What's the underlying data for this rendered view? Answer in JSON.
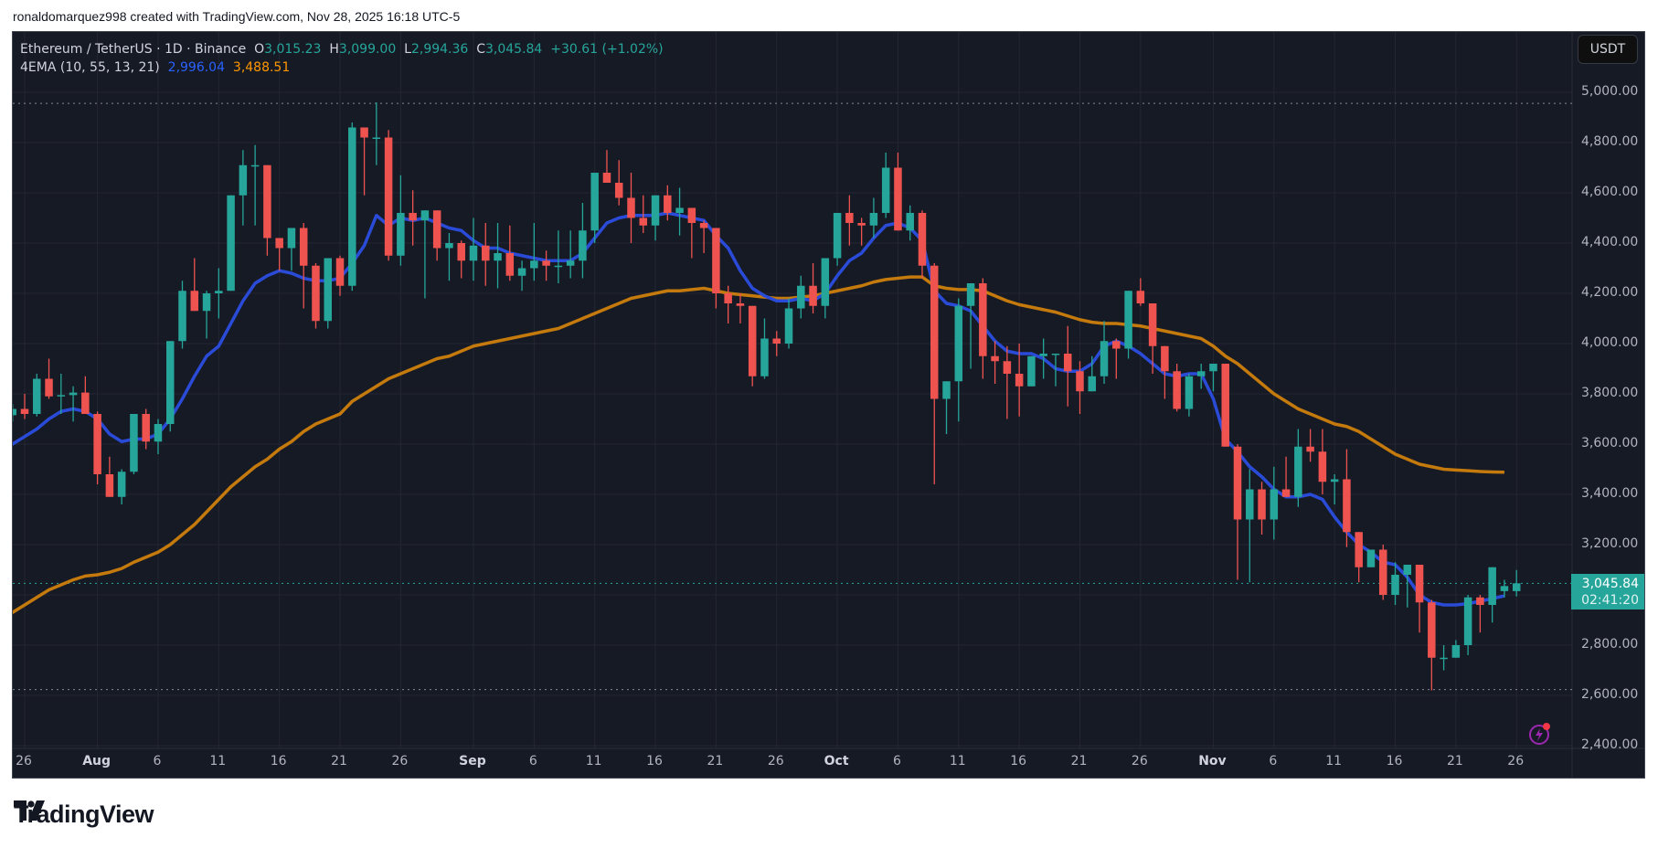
{
  "attribution": "ronaldomarquez998 created with TradingView.com, Nov 28, 2025 16:18 UTC-5",
  "legend": {
    "symbol": "Ethereum / TetherUS · 1D · Binance",
    "o_label": "O",
    "o_value": "3,015.23",
    "h_label": "H",
    "h_value": "3,099.00",
    "l_label": "L",
    "l_value": "2,994.36",
    "c_label": "C",
    "c_value": "3,045.84",
    "change": "+30.61 (+1.02%)",
    "indicator": "4EMA (10, 55, 13, 21)",
    "ema_fast_value": "2,996.04",
    "ema_slow_value": "3,488.51"
  },
  "currency_button": "USDT",
  "price_tag": {
    "price": "3,045.84",
    "countdown": "02:41:20"
  },
  "brand": "TradingView",
  "colors": {
    "background": "#161a25",
    "grid": "#242733",
    "up": "#26a69a",
    "down": "#ef5350",
    "ema_fast": "#2a4bd7",
    "ema_slow": "#c47a0c",
    "axis_text": "#b2b5be",
    "flash": "#9c27b0"
  },
  "chart_data": {
    "type": "candlestick",
    "title": "Ethereum / TetherUS · 1D · Binance",
    "xlabel": "",
    "ylabel": "USDT",
    "ylim": [
      2400,
      5000
    ],
    "grid": true,
    "y_ticks": [
      "5,000.00",
      "4,800.00",
      "4,600.00",
      "4,400.00",
      "4,200.00",
      "4,000.00",
      "3,800.00",
      "3,600.00",
      "3,400.00",
      "3,200.00",
      "2,800.00",
      "2,600.00",
      "2,400.00"
    ],
    "x_ticks": [
      {
        "label": "26",
        "day": 2,
        "month": false
      },
      {
        "label": "Aug",
        "day": 8,
        "month": true
      },
      {
        "label": "6",
        "day": 13,
        "month": false
      },
      {
        "label": "11",
        "day": 18,
        "month": false
      },
      {
        "label": "16",
        "day": 23,
        "month": false
      },
      {
        "label": "21",
        "day": 28,
        "month": false
      },
      {
        "label": "26",
        "day": 33,
        "month": false
      },
      {
        "label": "Sep",
        "day": 39,
        "month": true
      },
      {
        "label": "6",
        "day": 44,
        "month": false
      },
      {
        "label": "11",
        "day": 49,
        "month": false
      },
      {
        "label": "16",
        "day": 54,
        "month": false
      },
      {
        "label": "21",
        "day": 59,
        "month": false
      },
      {
        "label": "26",
        "day": 64,
        "month": false
      },
      {
        "label": "Oct",
        "day": 69,
        "month": true
      },
      {
        "label": "6",
        "day": 74,
        "month": false
      },
      {
        "label": "11",
        "day": 79,
        "month": false
      },
      {
        "label": "16",
        "day": 84,
        "month": false
      },
      {
        "label": "21",
        "day": 89,
        "month": false
      },
      {
        "label": "26",
        "day": 94,
        "month": false
      },
      {
        "label": "Nov",
        "day": 100,
        "month": true
      },
      {
        "label": "6",
        "day": 105,
        "month": false
      },
      {
        "label": "11",
        "day": 110,
        "month": false
      },
      {
        "label": "16",
        "day": 115,
        "month": false
      },
      {
        "label": "21",
        "day": 120,
        "month": false
      },
      {
        "label": "26",
        "day": 125,
        "month": false
      }
    ],
    "start_date": "2025-07-24",
    "series": [
      {
        "name": "ETHUSDT",
        "type": "ohlc",
        "values": [
          [
            3720,
            3745,
            3700,
            3715
          ],
          [
            3715,
            3760,
            3690,
            3740
          ],
          [
            3740,
            3800,
            3700,
            3720
          ],
          [
            3720,
            3880,
            3710,
            3860
          ],
          [
            3860,
            3940,
            3780,
            3790
          ],
          [
            3790,
            3880,
            3720,
            3795
          ],
          [
            3795,
            3830,
            3690,
            3805
          ],
          [
            3805,
            3870,
            3720,
            3720
          ],
          [
            3720,
            3730,
            3440,
            3480
          ],
          [
            3480,
            3550,
            3420,
            3390
          ],
          [
            3390,
            3500,
            3360,
            3490
          ],
          [
            3490,
            3720,
            3480,
            3720
          ],
          [
            3720,
            3740,
            3580,
            3610
          ],
          [
            3610,
            3700,
            3560,
            3680
          ],
          [
            3680,
            3960,
            3650,
            4010
          ],
          [
            4010,
            4250,
            3980,
            4210
          ],
          [
            4210,
            4340,
            4200,
            4130
          ],
          [
            4130,
            4210,
            4020,
            4200
          ],
          [
            4200,
            4300,
            4100,
            4210
          ],
          [
            4210,
            4560,
            4210,
            4590
          ],
          [
            4590,
            4770,
            4470,
            4710
          ],
          [
            4710,
            4790,
            4470,
            4710
          ],
          [
            4710,
            4580,
            4350,
            4420
          ],
          [
            4420,
            4420,
            4290,
            4380
          ],
          [
            4380,
            4440,
            4290,
            4460
          ],
          [
            4460,
            4480,
            4140,
            4310
          ],
          [
            4310,
            4320,
            4060,
            4090
          ],
          [
            4090,
            4320,
            4060,
            4340
          ],
          [
            4340,
            4350,
            4190,
            4230
          ],
          [
            4230,
            4880,
            4210,
            4860
          ],
          [
            4860,
            4820,
            4590,
            4820
          ],
          [
            4820,
            4960,
            4710,
            4820
          ],
          [
            4820,
            4850,
            4330,
            4350
          ],
          [
            4350,
            4670,
            4310,
            4520
          ],
          [
            4520,
            4610,
            4390,
            4490
          ],
          [
            4490,
            4510,
            4180,
            4530
          ],
          [
            4530,
            4510,
            4330,
            4380
          ],
          [
            4380,
            4440,
            4250,
            4400
          ],
          [
            4400,
            4410,
            4260,
            4330
          ],
          [
            4330,
            4500,
            4250,
            4390
          ],
          [
            4390,
            4480,
            4230,
            4330
          ],
          [
            4330,
            4480,
            4220,
            4360
          ],
          [
            4360,
            4470,
            4250,
            4270
          ],
          [
            4270,
            4330,
            4210,
            4300
          ],
          [
            4300,
            4480,
            4250,
            4330
          ],
          [
            4330,
            4370,
            4250,
            4310
          ],
          [
            4310,
            4450,
            4240,
            4310
          ],
          [
            4310,
            4450,
            4260,
            4330
          ],
          [
            4330,
            4560,
            4260,
            4450
          ],
          [
            4450,
            4630,
            4400,
            4680
          ],
          [
            4680,
            4770,
            4660,
            4640
          ],
          [
            4640,
            4730,
            4550,
            4580
          ],
          [
            4580,
            4680,
            4400,
            4500
          ],
          [
            4500,
            4590,
            4440,
            4470
          ],
          [
            4470,
            4590,
            4410,
            4590
          ],
          [
            4590,
            4630,
            4490,
            4520
          ],
          [
            4520,
            4620,
            4430,
            4540
          ],
          [
            4540,
            4540,
            4340,
            4480
          ],
          [
            4480,
            4490,
            4360,
            4460
          ],
          [
            4460,
            4440,
            4140,
            4200
          ],
          [
            4200,
            4230,
            4080,
            4160
          ],
          [
            4160,
            4200,
            4080,
            4150
          ],
          [
            4150,
            4150,
            3830,
            3870
          ],
          [
            3870,
            4100,
            3860,
            4020
          ],
          [
            4020,
            4050,
            3950,
            4000
          ],
          [
            4000,
            4180,
            3980,
            4140
          ],
          [
            4140,
            4270,
            4100,
            4230
          ],
          [
            4230,
            4320,
            4120,
            4150
          ],
          [
            4150,
            4300,
            4100,
            4340
          ],
          [
            4340,
            4470,
            4310,
            4520
          ],
          [
            4520,
            4590,
            4390,
            4480
          ],
          [
            4480,
            4500,
            4390,
            4470
          ],
          [
            4470,
            4580,
            4420,
            4520
          ],
          [
            4520,
            4760,
            4500,
            4700
          ],
          [
            4700,
            4760,
            4450,
            4450
          ],
          [
            4450,
            4550,
            4410,
            4520
          ],
          [
            4520,
            4530,
            4260,
            4310
          ],
          [
            4310,
            4320,
            3440,
            3780
          ],
          [
            3780,
            3820,
            3640,
            3850
          ],
          [
            3850,
            4180,
            3690,
            4150
          ],
          [
            4150,
            4240,
            3900,
            4240
          ],
          [
            4240,
            4260,
            3860,
            3950
          ],
          [
            3950,
            4010,
            3840,
            3930
          ],
          [
            3930,
            3990,
            3700,
            3880
          ],
          [
            3880,
            4000,
            3710,
            3830
          ],
          [
            3830,
            3950,
            3830,
            3950
          ],
          [
            3950,
            4020,
            3860,
            3960
          ],
          [
            3960,
            3950,
            3830,
            3960
          ],
          [
            3960,
            4070,
            3750,
            3890
          ],
          [
            3890,
            3930,
            3720,
            3810
          ],
          [
            3810,
            3950,
            3820,
            3870
          ],
          [
            3870,
            4090,
            3840,
            4010
          ],
          [
            4010,
            4020,
            3860,
            3980
          ],
          [
            3980,
            4130,
            3940,
            4210
          ],
          [
            4210,
            4260,
            4150,
            4160
          ],
          [
            4160,
            4120,
            3880,
            3990
          ],
          [
            3990,
            3960,
            3780,
            3890
          ],
          [
            3890,
            3920,
            3730,
            3740
          ],
          [
            3740,
            3880,
            3710,
            3870
          ],
          [
            3870,
            3920,
            3820,
            3890
          ],
          [
            3890,
            3910,
            3810,
            3920
          ],
          [
            3920,
            3910,
            3660,
            3590
          ],
          [
            3590,
            3600,
            3060,
            3300
          ],
          [
            3300,
            3500,
            3050,
            3420
          ],
          [
            3420,
            3450,
            3240,
            3300
          ],
          [
            3300,
            3510,
            3220,
            3420
          ],
          [
            3420,
            3550,
            3390,
            3390
          ],
          [
            3390,
            3660,
            3350,
            3590
          ],
          [
            3590,
            3660,
            3530,
            3570
          ],
          [
            3570,
            3660,
            3400,
            3450
          ],
          [
            3450,
            3480,
            3360,
            3460
          ],
          [
            3460,
            3580,
            3190,
            3250
          ],
          [
            3250,
            3240,
            3050,
            3110
          ],
          [
            3110,
            3180,
            3150,
            3180
          ],
          [
            3180,
            3200,
            2980,
            3000
          ],
          [
            3000,
            3130,
            2960,
            3080
          ],
          [
            3080,
            3120,
            2950,
            3120
          ],
          [
            3120,
            3120,
            2850,
            2970
          ],
          [
            2970,
            2980,
            2620,
            2750
          ],
          [
            2750,
            2800,
            2700,
            2750
          ],
          [
            2750,
            2820,
            2760,
            2800
          ],
          [
            2800,
            3000,
            2760,
            2990
          ],
          [
            2990,
            3000,
            2850,
            2960
          ],
          [
            2960,
            3070,
            2890,
            3110
          ],
          [
            3015,
            3060,
            2990,
            3035
          ],
          [
            3015,
            3099,
            2994,
            3046
          ]
        ]
      }
    ],
    "ema_fast": {
      "name": "EMA fast",
      "last": 2996.04,
      "values": [
        3560,
        3600,
        3630,
        3660,
        3700,
        3730,
        3740,
        3730,
        3700,
        3640,
        3610,
        3620,
        3620,
        3640,
        3700,
        3780,
        3870,
        3950,
        3990,
        4080,
        4170,
        4240,
        4270,
        4290,
        4280,
        4260,
        4250,
        4250,
        4260,
        4320,
        4390,
        4510,
        4470,
        4500,
        4490,
        4500,
        4480,
        4460,
        4450,
        4410,
        4380,
        4380,
        4360,
        4350,
        4340,
        4330,
        4330,
        4330,
        4360,
        4420,
        4480,
        4500,
        4510,
        4510,
        4510,
        4520,
        4510,
        4500,
        4490,
        4430,
        4380,
        4290,
        4220,
        4190,
        4170,
        4170,
        4180,
        4170,
        4200,
        4270,
        4330,
        4360,
        4420,
        4470,
        4480,
        4460,
        4410,
        4210,
        4160,
        4150,
        4130,
        4070,
        4010,
        3970,
        3960,
        3960,
        3940,
        3900,
        3890,
        3890,
        3920,
        3990,
        4010,
        3990,
        3960,
        3920,
        3880,
        3870,
        3880,
        3880,
        3780,
        3620,
        3570,
        3510,
        3470,
        3420,
        3390,
        3390,
        3400,
        3380,
        3310,
        3250,
        3200,
        3170,
        3130,
        3120,
        3070,
        3000,
        2970,
        2960,
        2960,
        2965,
        2975,
        2985,
        2996
      ]
    },
    "ema_slow": {
      "name": "EMA slow",
      "last": 3488.51,
      "values": [
        2900,
        2930,
        2960,
        2990,
        3020,
        3040,
        3060,
        3075,
        3080,
        3090,
        3105,
        3130,
        3150,
        3170,
        3200,
        3240,
        3280,
        3330,
        3380,
        3430,
        3470,
        3510,
        3540,
        3580,
        3610,
        3650,
        3680,
        3700,
        3720,
        3770,
        3800,
        3830,
        3860,
        3880,
        3900,
        3920,
        3940,
        3950,
        3970,
        3990,
        4000,
        4010,
        4020,
        4030,
        4040,
        4050,
        4060,
        4080,
        4100,
        4120,
        4140,
        4160,
        4180,
        4190,
        4200,
        4210,
        4210,
        4215,
        4220,
        4210,
        4200,
        4195,
        4190,
        4185,
        4180,
        4180,
        4185,
        4190,
        4200,
        4210,
        4220,
        4230,
        4245,
        4255,
        4260,
        4265,
        4265,
        4230,
        4220,
        4215,
        4215,
        4210,
        4190,
        4170,
        4155,
        4145,
        4135,
        4125,
        4110,
        4095,
        4085,
        4080,
        4080,
        4075,
        4070,
        4060,
        4050,
        4040,
        4030,
        4020,
        3990,
        3950,
        3920,
        3880,
        3840,
        3800,
        3770,
        3740,
        3720,
        3700,
        3680,
        3670,
        3650,
        3620,
        3590,
        3560,
        3540,
        3520,
        3510,
        3500,
        3497,
        3494,
        3491,
        3489,
        3488
      ]
    },
    "annotations": {
      "high_line": 4956,
      "low_line": 2623,
      "last_price_line": 3045.84
    }
  }
}
